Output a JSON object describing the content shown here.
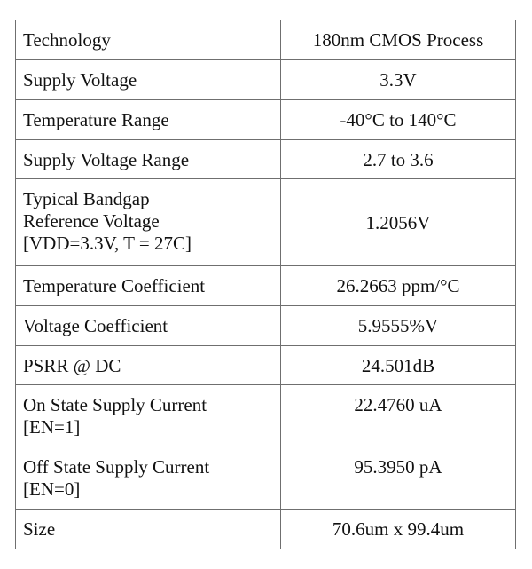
{
  "rows": [
    {
      "label": [
        "Technology"
      ],
      "value": "180nm CMOS Process"
    },
    {
      "label": [
        "Supply Voltage"
      ],
      "value": "3.3V"
    },
    {
      "label": [
        "Temperature Range"
      ],
      "value": "-40°C to 140°C"
    },
    {
      "label": [
        "Supply Voltage Range"
      ],
      "value": "2.7  to 3.6"
    },
    {
      "label": [
        "Typical Bandgap",
        "Reference Voltage",
        "[VDD=3.3V, T = 27C]"
      ],
      "value": "1.2056V"
    },
    {
      "label": [
        "Temperature Coefficient"
      ],
      "value": "26.2663 ppm/°C"
    },
    {
      "label": [
        "Voltage Coefficient"
      ],
      "value": "5.9555%V"
    },
    {
      "label": [
        "PSRR @ DC"
      ],
      "value": "24.501dB"
    },
    {
      "label": [
        "On State Supply Current",
        "[EN=1]"
      ],
      "value": "22.4760 uA"
    },
    {
      "label": [
        "Off State Supply Current",
        "[EN=0]"
      ],
      "value": "95.3950 pA"
    },
    {
      "label": [
        "Size"
      ],
      "value": "70.6um x 99.4um"
    }
  ]
}
